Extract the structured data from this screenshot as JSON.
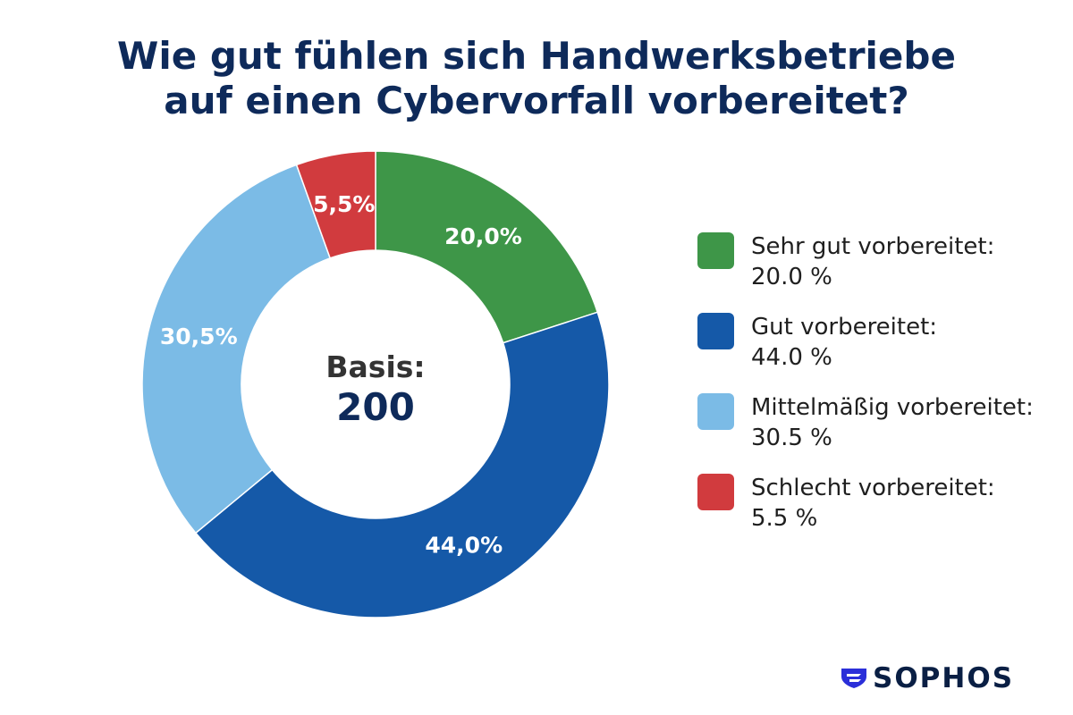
{
  "title_line1": "Wie gut fühlen sich Handwerksbetriebe",
  "title_line2": "auf einen Cybervorfall vorbereitet?",
  "center": {
    "label": "Basis:",
    "value": "200"
  },
  "logo_text": "SOPHOS",
  "chart_data": {
    "type": "pie",
    "variant": "donut",
    "slices": [
      {
        "label": "Sehr gut vorbereitet:",
        "value": 20.0,
        "value_text": "20.0 %",
        "data_label": "20,0%",
        "color": "#3e9648"
      },
      {
        "label": "Gut vorbereitet:",
        "value": 44.0,
        "value_text": "44.0 %",
        "data_label": "44,0%",
        "color": "#1559a8"
      },
      {
        "label": "Mittelmäßig vorbereitet:",
        "value": 30.5,
        "value_text": "30.5 %",
        "data_label": "30,5%",
        "color": "#7bbbe6"
      },
      {
        "label": "Schlecht vorbereitet:",
        "value": 5.5,
        "value_text": "5.5 %",
        "data_label": "5,5%",
        "color": "#d13b3e"
      }
    ],
    "legend_position": "right"
  },
  "colors": {
    "title": "#0e2a5a",
    "center_value": "#0e2a5a",
    "center_label": "#333333",
    "logo": "#0a1f44",
    "logo_mark": "#2b2fd9"
  },
  "icons": {
    "logo_mark": "sophos-shield-icon"
  }
}
